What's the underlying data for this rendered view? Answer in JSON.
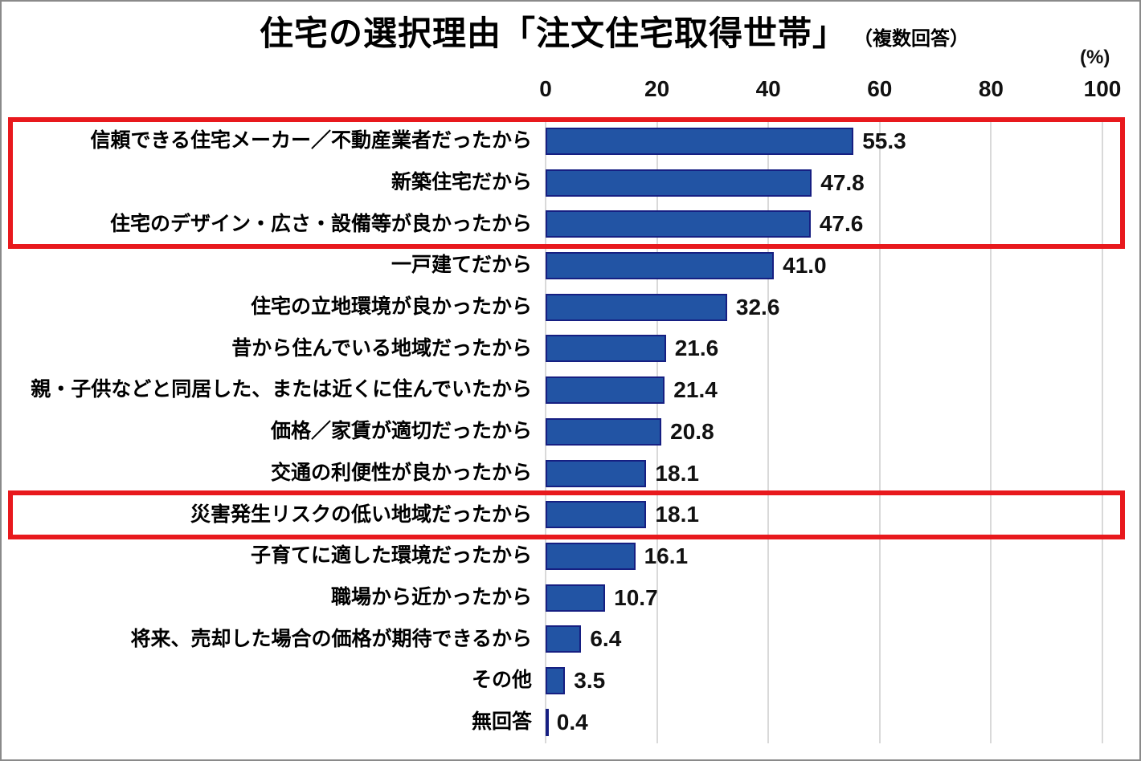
{
  "frame": {
    "border_color": "#8A8A8A",
    "background": "#FFFFFF"
  },
  "header": {
    "title": "住宅の選択理由「注文住宅取得世帯」",
    "subtitle": "（複数回答）",
    "unit_label": "(%)"
  },
  "chart_data": {
    "type": "bar",
    "orientation": "horizontal",
    "title": "住宅の選択理由「注文住宅取得世帯」",
    "subtitle": "（複数回答）",
    "unit": "%",
    "xlim": [
      0,
      100
    ],
    "x_ticks": [
      "0",
      "20",
      "40",
      "60",
      "80",
      "100"
    ],
    "grid": true,
    "categories": [
      "信頼できる住宅メーカー／不動産業者だったから",
      "新築住宅だから",
      "住宅のデザイン・広さ・設備等が良かったから",
      "一戸建てだから",
      "住宅の立地環境が良かったから",
      "昔から住んでいる地域だったから",
      "親・子供などと同居した、または近くに住んでいたから",
      "価格／家賃が適切だったから",
      "交通の利便性が良かったから",
      "災害発生リスクの低い地域だったから",
      "子育てに適した環境だったから",
      "職場から近かったから",
      "将来、売却した場合の価格が期待できるから",
      "その他",
      "無回答"
    ],
    "values": [
      55.3,
      47.8,
      47.6,
      41.0,
      32.6,
      21.6,
      21.4,
      20.8,
      18.1,
      18.1,
      16.1,
      10.7,
      6.4,
      3.5,
      0.4
    ],
    "value_labels": [
      "55.3",
      "47.8",
      "47.6",
      "41.0",
      "32.6",
      "21.6",
      "21.4",
      "20.8",
      "18.1",
      "18.1",
      "16.1",
      "10.7",
      "6.4",
      "3.5",
      "0.4"
    ],
    "bar_color": "#2254A4",
    "bar_border_color": "#161F82",
    "gridline_color": "#D9D9D9",
    "highlight_color": "#E8191D",
    "highlights": [
      {
        "from_row": 0,
        "to_row": 2
      },
      {
        "from_row": 9,
        "to_row": 9
      }
    ]
  }
}
